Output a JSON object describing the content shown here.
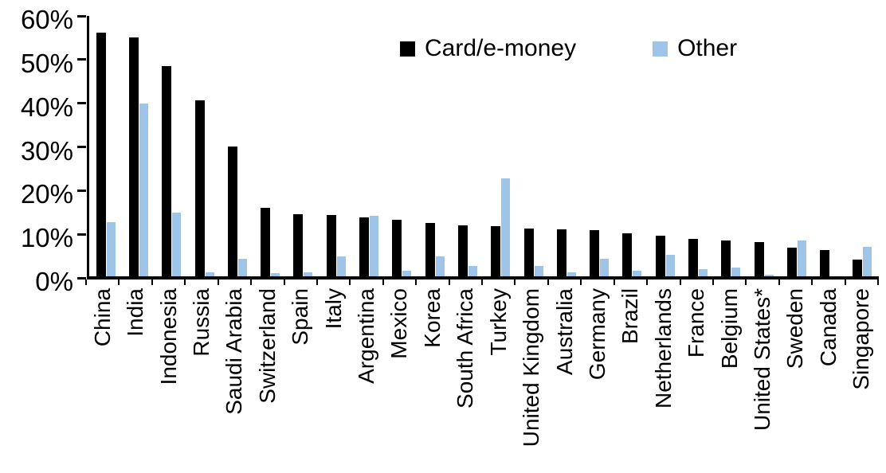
{
  "chart_data": {
    "type": "bar",
    "title": "",
    "categories": [
      "China",
      "India",
      "Indonesia",
      "Russia",
      "Saudi Arabia",
      "Switzerland",
      "Spain",
      "Italy",
      "Argentina",
      "Mexico",
      "Korea",
      "South Africa",
      "Turkey",
      "United Kingdom",
      "Australia",
      "Germany",
      "Brazil",
      "Netherlands",
      "France",
      "Belgium",
      "United States*",
      "Sweden",
      "Canada",
      "Singapore"
    ],
    "series": [
      {
        "name": "Card/e-money",
        "color": "#000000",
        "values": [
          56.2,
          55.0,
          48.4,
          40.6,
          30.0,
          15.8,
          14.3,
          14.1,
          13.5,
          13.0,
          12.3,
          11.8,
          11.6,
          11.0,
          10.8,
          10.6,
          10.0,
          9.3,
          8.7,
          8.2,
          7.9,
          6.7,
          6.1,
          3.9
        ]
      },
      {
        "name": "Other",
        "color": "#9EC5E8",
        "values": [
          12.4,
          39.8,
          14.6,
          1.0,
          4.0,
          0.8,
          1.0,
          4.5,
          13.9,
          1.3,
          4.6,
          2.4,
          22.6,
          2.4,
          1.0,
          4.0,
          1.2,
          4.9,
          1.6,
          2.1,
          0.3,
          8.3,
          0,
          6.8
        ]
      }
    ],
    "y_axis": {
      "min": 0,
      "max": 60,
      "tick_interval": 10,
      "tick_labels": [
        "0%",
        "10%",
        "20%",
        "30%",
        "40%",
        "50%",
        "60%"
      ]
    },
    "x_axis": {
      "label": ""
    },
    "grid": false,
    "legend_position": "top-center"
  }
}
